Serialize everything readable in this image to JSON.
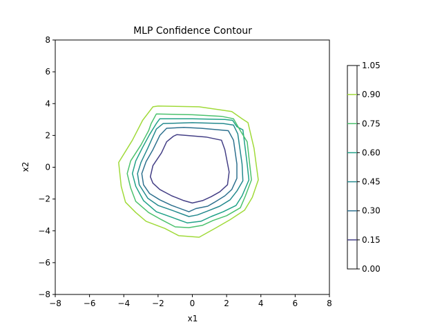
{
  "chart_data": {
    "type": "contour",
    "title": "MLP Confidence Contour",
    "xlabel": "x1",
    "ylabel": "x2",
    "xlim": [
      -8,
      8
    ],
    "ylim": [
      -8,
      8
    ],
    "x_ticks": [
      -8,
      -6,
      -4,
      -2,
      0,
      2,
      4,
      6,
      8
    ],
    "y_ticks": [
      -8,
      -6,
      -4,
      -2,
      0,
      2,
      4,
      6,
      8
    ],
    "x_tick_labels": [
      "−8",
      "−6",
      "−4",
      "−2",
      "0",
      "2",
      "4",
      "6",
      "8"
    ],
    "y_tick_labels": [
      "−8",
      "−6",
      "−4",
      "−2",
      "0",
      "2",
      "4",
      "6",
      "8"
    ],
    "grid": false,
    "colorbar": {
      "range": [
        0.0,
        1.05
      ],
      "ticks": [
        0.0,
        0.15,
        0.3,
        0.45,
        0.6,
        0.75,
        0.9,
        1.05
      ],
      "tick_labels": [
        "0.00",
        "0.15",
        "0.30",
        "0.45",
        "0.60",
        "0.75",
        "0.90",
        "1.05"
      ]
    },
    "levels": [
      {
        "level": 0.15,
        "color": "#433e85",
        "points": [
          [
            -0.9,
            2.05
          ],
          [
            0.8,
            1.9
          ],
          [
            1.7,
            1.7
          ],
          [
            1.9,
            1.1
          ],
          [
            2.15,
            -0.3
          ],
          [
            2.05,
            -1.1
          ],
          [
            1.6,
            -1.55
          ],
          [
            1.1,
            -1.85
          ],
          [
            0.6,
            -2.1
          ],
          [
            0,
            -2.25
          ],
          [
            -0.5,
            -2.1
          ],
          [
            -1.2,
            -1.8
          ],
          [
            -1.9,
            -1.4
          ],
          [
            -2.3,
            -1.0
          ],
          [
            -2.45,
            -0.6
          ],
          [
            -2.3,
            0.1
          ],
          [
            -1.8,
            0.9
          ],
          [
            -1.5,
            1.6
          ],
          [
            -1.1,
            1.95
          ],
          [
            -0.9,
            2.05
          ]
        ]
      },
      {
        "level": 0.3,
        "color": "#2d708e",
        "points": [
          [
            -1.5,
            2.45
          ],
          [
            -0.5,
            2.5
          ],
          [
            0.5,
            2.45
          ],
          [
            2.1,
            2.3
          ],
          [
            2.4,
            1.7
          ],
          [
            2.6,
            0.2
          ],
          [
            2.6,
            -0.7
          ],
          [
            2.3,
            -1.4
          ],
          [
            1.9,
            -1.8
          ],
          [
            1.3,
            -2.2
          ],
          [
            0.9,
            -2.45
          ],
          [
            0.2,
            -2.6
          ],
          [
            -0.2,
            -2.8
          ],
          [
            -1.2,
            -2.4
          ],
          [
            -1.9,
            -2.05
          ],
          [
            -2.5,
            -1.65
          ],
          [
            -2.85,
            -1.1
          ],
          [
            -2.95,
            -0.4
          ],
          [
            -2.7,
            0.35
          ],
          [
            -2.3,
            1.1
          ],
          [
            -1.9,
            2.0
          ],
          [
            -1.5,
            2.45
          ]
        ]
      },
      {
        "level": 0.45,
        "color": "#23898e",
        "points": [
          [
            -1.7,
            2.75
          ],
          [
            0,
            2.8
          ],
          [
            1.8,
            2.75
          ],
          [
            2.4,
            2.65
          ],
          [
            2.65,
            2.1
          ],
          [
            2.9,
            0.2
          ],
          [
            2.95,
            -0.85
          ],
          [
            2.6,
            -1.5
          ],
          [
            2.2,
            -2.05
          ],
          [
            1.6,
            -2.45
          ],
          [
            0.9,
            -2.75
          ],
          [
            0.3,
            -3.0
          ],
          [
            -0.2,
            -3.1
          ],
          [
            -1.2,
            -2.7
          ],
          [
            -2.0,
            -2.4
          ],
          [
            -2.6,
            -1.95
          ],
          [
            -3.1,
            -1.1
          ],
          [
            -3.2,
            -0.4
          ],
          [
            -3.0,
            0.3
          ],
          [
            -2.6,
            1.2
          ],
          [
            -2.1,
            2.4
          ],
          [
            -1.7,
            2.75
          ]
        ]
      },
      {
        "level": 0.6,
        "color": "#1fa187",
        "points": [
          [
            -1.9,
            3.05
          ],
          [
            0,
            3.05
          ],
          [
            1.9,
            3.0
          ],
          [
            2.35,
            2.95
          ],
          [
            2.6,
            2.55
          ],
          [
            2.95,
            2.35
          ],
          [
            3.2,
            0.2
          ],
          [
            3.3,
            -0.8
          ],
          [
            2.9,
            -1.8
          ],
          [
            2.55,
            -2.4
          ],
          [
            1.8,
            -2.8
          ],
          [
            1.1,
            -3.1
          ],
          [
            0.5,
            -3.4
          ],
          [
            -0.3,
            -3.5
          ],
          [
            -1.2,
            -3.15
          ],
          [
            -2.1,
            -2.8
          ],
          [
            -2.85,
            -2.1
          ],
          [
            -3.3,
            -1.2
          ],
          [
            -3.5,
            -0.4
          ],
          [
            -3.3,
            0.4
          ],
          [
            -2.9,
            1.25
          ],
          [
            -2.5,
            2.05
          ],
          [
            -2.1,
            2.75
          ],
          [
            -1.9,
            3.05
          ]
        ]
      },
      {
        "level": 0.75,
        "color": "#4ac16d",
        "points": [
          [
            -2.1,
            3.35
          ],
          [
            0,
            3.3
          ],
          [
            1.7,
            3.2
          ],
          [
            2.4,
            3.05
          ],
          [
            2.8,
            2.3
          ],
          [
            3.2,
            1.6
          ],
          [
            3.45,
            -0.8
          ],
          [
            3.1,
            -1.8
          ],
          [
            2.8,
            -2.55
          ],
          [
            2.0,
            -3.05
          ],
          [
            1.2,
            -3.35
          ],
          [
            0.6,
            -3.65
          ],
          [
            -0.2,
            -3.8
          ],
          [
            -1.0,
            -3.75
          ],
          [
            -1.8,
            -3.3
          ],
          [
            -2.55,
            -2.85
          ],
          [
            -3.3,
            -2.15
          ],
          [
            -3.6,
            -1.3
          ],
          [
            -3.8,
            -0.4
          ],
          [
            -3.6,
            0.4
          ],
          [
            -3.0,
            1.4
          ],
          [
            -2.55,
            2.3
          ],
          [
            -2.4,
            2.75
          ],
          [
            -2.1,
            3.35
          ]
        ]
      },
      {
        "level": 0.9,
        "color": "#a0da39",
        "points": [
          [
            -2.3,
            3.8
          ],
          [
            -2.0,
            3.85
          ],
          [
            0.4,
            3.8
          ],
          [
            2.3,
            3.5
          ],
          [
            2.9,
            3.05
          ],
          [
            3.25,
            2.8
          ],
          [
            3.6,
            1.2
          ],
          [
            3.85,
            -0.8
          ],
          [
            3.5,
            -1.9
          ],
          [
            3.05,
            -2.7
          ],
          [
            2.2,
            -3.3
          ],
          [
            1.4,
            -3.8
          ],
          [
            0.4,
            -4.4
          ],
          [
            -0.8,
            -4.3
          ],
          [
            -1.6,
            -3.85
          ],
          [
            -2.7,
            -3.4
          ],
          [
            -3.3,
            -2.85
          ],
          [
            -3.9,
            -2.2
          ],
          [
            -4.15,
            -1.2
          ],
          [
            -4.3,
            0.3
          ],
          [
            -3.5,
            1.7
          ],
          [
            -2.9,
            2.95
          ],
          [
            -2.3,
            3.8
          ]
        ]
      }
    ]
  }
}
